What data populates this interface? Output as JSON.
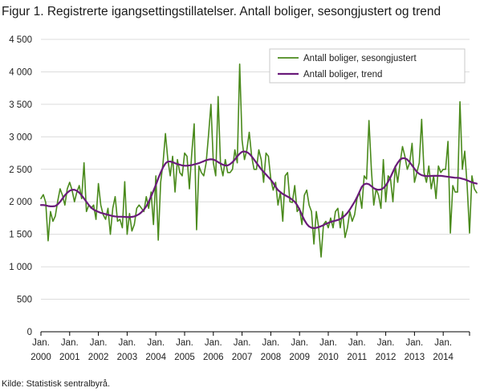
{
  "chart_data": {
    "type": "line",
    "title": "Figur 1. Registrerte igangsettingstillatelser. Antall boliger, sesongjustert og trend",
    "source": "Kilde: Statistisk sentralbyrå.",
    "xlabel": "",
    "ylabel": "",
    "ylim": [
      0,
      4500
    ],
    "yticks": [
      0,
      500,
      1000,
      1500,
      2000,
      2500,
      3000,
      3500,
      4000,
      4500
    ],
    "ytick_labels": [
      "0",
      "500",
      "1 000",
      "1 500",
      "2 000",
      "2 500",
      "3 000",
      "3 500",
      "4 000",
      "4 500"
    ],
    "xlim": [
      "2000-01",
      "2014-12"
    ],
    "xticks": [
      "2000-01",
      "2001-01",
      "2002-01",
      "2003-01",
      "2004-01",
      "2005-01",
      "2006-01",
      "2007-01",
      "2008-01",
      "2009-01",
      "2010-01",
      "2011-01",
      "2012-01",
      "2013-01",
      "2014-01"
    ],
    "xtick_labels": [
      [
        "Jan.",
        "2000"
      ],
      [
        "Jan.",
        "2001"
      ],
      [
        "Jan.",
        "2002"
      ],
      [
        "Jan.",
        "2003"
      ],
      [
        "Jan.",
        "2004"
      ],
      [
        "Jan.",
        "2005"
      ],
      [
        "Jan.",
        "2006"
      ],
      [
        "Jan.",
        "2007"
      ],
      [
        "Jan.",
        "2008"
      ],
      [
        "Jan.",
        "2009"
      ],
      [
        "Jan.",
        "2010"
      ],
      [
        "Jan.",
        "2011"
      ],
      [
        "Jan.",
        "2012"
      ],
      [
        "Jan.",
        "2013"
      ],
      [
        "Jan.",
        "2014"
      ]
    ],
    "grid": "horizontal",
    "legend": "top-right",
    "series": [
      {
        "name": "Antall boliger, sesongjustert",
        "color": "#4a8a1c",
        "start": "2000-01",
        "frequency": "monthly",
        "values": [
          2050,
          2110,
          1990,
          1400,
          1850,
          1700,
          1780,
          2010,
          2200,
          2100,
          1950,
          2200,
          2300,
          2180,
          2000,
          2150,
          2250,
          2050,
          2600,
          1850,
          1950,
          1900,
          1950,
          1730,
          2280,
          1950,
          1800,
          1730,
          1900,
          1500,
          1900,
          2080,
          1700,
          1730,
          1600,
          2310,
          1500,
          1820,
          1550,
          1650,
          1900,
          1950,
          1900,
          1850,
          2080,
          1900,
          2150,
          1650,
          2400,
          1410,
          2300,
          2600,
          3050,
          2650,
          2400,
          2700,
          2150,
          2650,
          2450,
          2400,
          2750,
          2700,
          2200,
          2750,
          3200,
          1570,
          2550,
          2450,
          2400,
          2600,
          3030,
          3500,
          2600,
          2400,
          3620,
          2580,
          2400,
          2650,
          2450,
          2450,
          2500,
          2800,
          2600,
          4120,
          2950,
          2650,
          2800,
          3070,
          2700,
          2500,
          2500,
          2800,
          2650,
          2300,
          2750,
          2700,
          2350,
          2180,
          2300,
          1950,
          2150,
          1700,
          2400,
          2450,
          2000,
          1990,
          2250,
          1850,
          1900,
          1650,
          2100,
          2180,
          1950,
          1850,
          1350,
          1850,
          1600,
          1150,
          1650,
          1700,
          1600,
          1750,
          1600,
          1850,
          1900,
          1600,
          1850,
          1450,
          1600,
          1850,
          1700,
          1800,
          2050,
          2150,
          1900,
          2400,
          2350,
          3250,
          2500,
          1950,
          2200,
          2100,
          1900,
          2650,
          2000,
          2400,
          2350,
          2000,
          2550,
          2300,
          2600,
          2850,
          2700,
          2500,
          2600,
          2900,
          2300,
          2450,
          2600,
          3270,
          2450,
          2300,
          2550,
          2200,
          2400,
          2050,
          2550,
          2450,
          2500,
          2500,
          2930,
          1520,
          2250,
          2150,
          2150,
          3540,
          2500,
          2780,
          2250,
          1520,
          2400,
          2200,
          2140
        ]
      },
      {
        "name": "Antall boliger, trend",
        "color": "#6a1b7a",
        "start": "2000-01",
        "frequency": "monthly",
        "values": [
          1950,
          1950,
          1945,
          1935,
          1930,
          1930,
          1935,
          1960,
          2000,
          2050,
          2100,
          2140,
          2170,
          2185,
          2185,
          2170,
          2140,
          2100,
          2050,
          2000,
          1950,
          1910,
          1880,
          1860,
          1845,
          1830,
          1820,
          1810,
          1800,
          1790,
          1780,
          1775,
          1770,
          1770,
          1770,
          1768,
          1765,
          1765,
          1768,
          1775,
          1790,
          1810,
          1840,
          1880,
          1930,
          2000,
          2080,
          2170,
          2260,
          2360,
          2450,
          2530,
          2590,
          2620,
          2620,
          2610,
          2595,
          2580,
          2570,
          2560,
          2555,
          2555,
          2560,
          2565,
          2575,
          2585,
          2595,
          2610,
          2625,
          2640,
          2650,
          2655,
          2650,
          2635,
          2610,
          2590,
          2570,
          2560,
          2560,
          2580,
          2610,
          2650,
          2700,
          2740,
          2770,
          2775,
          2765,
          2740,
          2700,
          2650,
          2600,
          2550,
          2500,
          2460,
          2420,
          2380,
          2340,
          2290,
          2230,
          2180,
          2150,
          2120,
          2100,
          2080,
          2060,
          2030,
          2000,
          1950,
          1880,
          1800,
          1720,
          1660,
          1620,
          1600,
          1595,
          1600,
          1610,
          1625,
          1640,
          1660,
          1675,
          1690,
          1700,
          1710,
          1720,
          1735,
          1760,
          1790,
          1830,
          1880,
          1940,
          2000,
          2070,
          2150,
          2230,
          2270,
          2280,
          2270,
          2240,
          2210,
          2190,
          2185,
          2190,
          2210,
          2250,
          2310,
          2380,
          2460,
          2540,
          2600,
          2650,
          2670,
          2670,
          2650,
          2610,
          2560,
          2510,
          2460,
          2430,
          2410,
          2400,
          2395,
          2395,
          2398,
          2400,
          2400,
          2400,
          2400,
          2395,
          2390,
          2385,
          2380,
          2375,
          2370,
          2370,
          2365,
          2355,
          2345,
          2330,
          2315,
          2300,
          2290,
          2280
        ]
      }
    ]
  }
}
